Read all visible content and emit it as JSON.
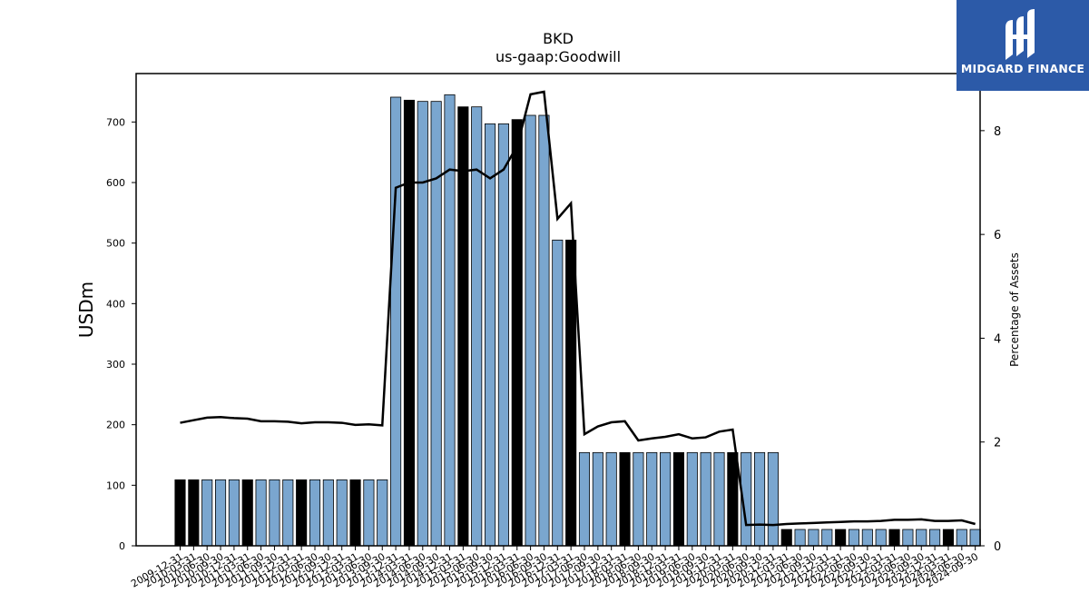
{
  "chart_data": {
    "type": "bar",
    "title": "BKD",
    "subtitle": "us-gaap:Goodwill",
    "ylabel": "USDm",
    "y2label": "Percentage of Assets",
    "ylim": [
      0,
      780
    ],
    "y2lim": [
      0,
      9.1
    ],
    "yticks": [
      0,
      100,
      200,
      300,
      400,
      500,
      600,
      700
    ],
    "y2ticks": [
      0,
      2,
      4,
      6,
      8
    ],
    "grid": false,
    "colors": {
      "bar_default": "#7aa6cf",
      "bar_highlight": "#000000",
      "line": "#000000",
      "edge": "#000000"
    },
    "categories": [
      "2009-12-31",
      "2010-03-31",
      "2010-06-30",
      "2010-09-30",
      "2010-12-31",
      "2011-03-31",
      "2011-06-30",
      "2011-09-30",
      "2011-12-31",
      "2012-03-31",
      "2012-06-30",
      "2012-09-30",
      "2012-12-31",
      "2013-03-31",
      "2013-06-30",
      "2013-09-30",
      "2013-12-31",
      "2014-03-31",
      "2014-06-30",
      "2014-09-30",
      "2014-12-31",
      "2015-03-31",
      "2015-06-30",
      "2015-09-30",
      "2015-12-31",
      "2016-03-31",
      "2016-06-30",
      "2016-09-30",
      "2016-12-31",
      "2017-03-31",
      "2017-06-30",
      "2017-09-30",
      "2017-12-31",
      "2018-03-31",
      "2018-06-30",
      "2018-09-30",
      "2018-12-31",
      "2019-03-31",
      "2019-06-30",
      "2019-09-30",
      "2019-12-31",
      "2020-03-31",
      "2020-06-30",
      "2020-09-30",
      "2020-12-31",
      "2021-03-31",
      "2021-06-30",
      "2021-09-30",
      "2021-12-31",
      "2022-03-31",
      "2022-06-30",
      "2022-09-30",
      "2022-12-31",
      "2023-03-31",
      "2023-06-30",
      "2023-09-30",
      "2023-12-31",
      "2024-03-31",
      "2024-06-30",
      "2024-09-30"
    ],
    "xtick_labels": [
      "2009-12-31",
      "2010-03-31",
      "2010-06-30",
      "2010-09-30",
      "2010-12-31",
      "2011-03-31",
      "2011-06-30",
      "2011-09-30",
      "2011-12-31",
      "2012-03-31",
      "2012-06-30",
      "2012-09-30",
      "2012-12-31",
      "2013-03-31",
      "2013-06-30",
      "2013-09-30",
      "2013-12-31",
      "2014-03-31",
      "2014-06-30",
      "2014-09-30",
      "2014-12-31",
      "2015-03-31",
      "2015-06-30",
      "2015-09-30",
      "2015-12-31",
      "2016-03-31",
      "2016-06-30",
      "2016-09-30",
      "2016-12-31",
      "2017-03-31",
      "2017-06-30",
      "2017-09-30",
      "2017-12-31",
      "2018-03-31",
      "2018-06-30",
      "2018-09-30",
      "2018-12-31",
      "2019-03-31",
      "2019-06-30",
      "2019-09-30",
      "2019-12-31",
      "2020-03-31",
      "2020-06-30",
      "2020-09-30",
      "2020-12-31",
      "2021-03-31",
      "2021-06-30",
      "2021-09-30",
      "2021-12-31",
      "2022-03-31",
      "2022-06-30",
      "2022-09-30",
      "2022-12-31",
      "2023-03-31",
      "2023-06-30",
      "2023-09-30",
      "2023-12-31",
      "2024-03-31",
      "2024-06-30",
      "2024-09-30"
    ],
    "highlight": [
      true,
      true,
      false,
      false,
      false,
      true,
      false,
      false,
      false,
      true,
      false,
      false,
      false,
      true,
      false,
      false,
      false,
      true,
      false,
      false,
      false,
      true,
      false,
      false,
      false,
      true,
      false,
      false,
      false,
      true,
      false,
      false,
      false,
      true,
      false,
      false,
      false,
      true,
      false,
      false,
      false,
      true,
      false,
      false,
      false,
      true,
      false,
      false,
      false,
      true,
      false,
      false,
      false,
      true,
      false,
      false,
      false,
      true,
      false,
      false
    ],
    "series": [
      {
        "type": "bar",
        "axis": "left",
        "values": [
          109,
          109,
          109,
          109,
          109,
          109,
          109,
          109,
          109,
          109,
          109,
          109,
          109,
          109,
          109,
          109,
          741,
          736,
          734,
          734,
          745,
          725,
          725,
          697,
          697,
          704,
          711,
          711,
          505,
          505,
          154,
          154,
          154,
          154,
          154,
          154,
          154,
          154,
          154,
          154,
          154,
          154,
          154,
          154,
          154,
          27,
          27,
          27,
          27,
          27,
          27,
          27,
          27,
          27,
          27,
          27,
          27,
          27,
          27,
          27
        ]
      },
      {
        "type": "line",
        "axis": "right",
        "values": [
          2.37,
          2.42,
          2.47,
          2.48,
          2.46,
          2.45,
          2.4,
          2.4,
          2.39,
          2.36,
          2.38,
          2.38,
          2.37,
          2.33,
          2.34,
          2.32,
          6.9,
          7.0,
          7.0,
          7.08,
          7.25,
          7.22,
          7.25,
          7.08,
          7.25,
          7.7,
          8.7,
          8.75,
          6.3,
          6.6,
          2.15,
          2.3,
          2.38,
          2.4,
          2.03,
          2.07,
          2.1,
          2.15,
          2.07,
          2.09,
          2.2,
          2.24,
          0.4,
          0.41,
          0.4,
          0.42,
          0.43,
          0.44,
          0.45,
          0.46,
          0.47,
          0.47,
          0.48,
          0.5,
          0.5,
          0.51,
          0.48,
          0.48,
          0.49,
          0.42
        ]
      }
    ]
  },
  "branding": {
    "logo_text": "MIDGARD FINANCE"
  }
}
